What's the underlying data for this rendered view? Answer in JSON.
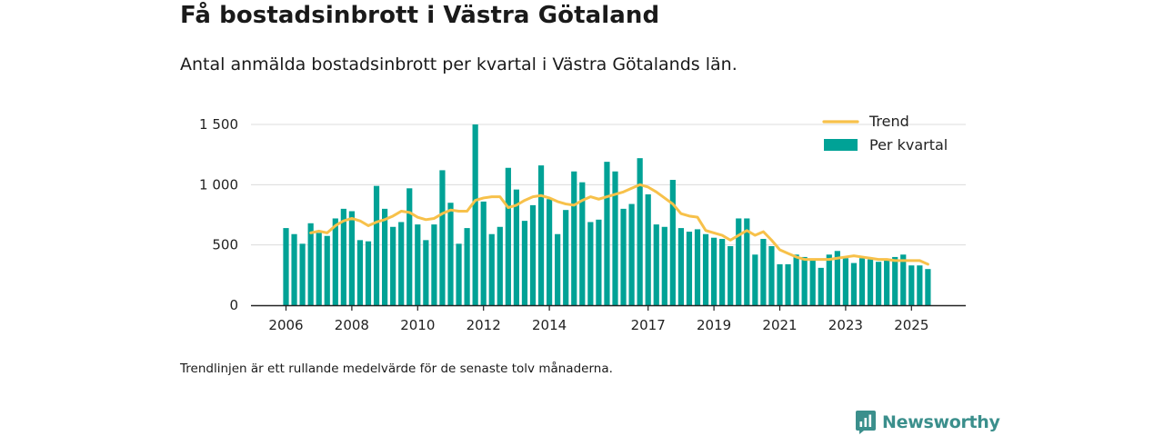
{
  "title": "Få bostadsinbrott i Västra Götaland",
  "subtitle": "Antal anmälda bostadsinbrott per kvartal i Västra Götalands län.",
  "footnote": "Trendlinjen är ett rullande medelvärde för de senaste tolv månaderna.",
  "brand": {
    "name": "Newsworthy"
  },
  "colors": {
    "bars": "#00a296",
    "trend": "#f7c14a",
    "axis": "#222222",
    "grid": "#dcdcdc"
  },
  "chart_data": {
    "type": "bar",
    "title": "Få bostadsinbrott i Västra Götaland",
    "xlabel": "",
    "ylabel": "",
    "ylim": [
      0,
      1500
    ],
    "yticks": [
      0,
      500,
      1000,
      1500
    ],
    "ytick_labels": [
      "0",
      "500",
      "1 000",
      "1 500"
    ],
    "xtick_labels": [
      {
        "label": "2006",
        "index": 0
      },
      {
        "label": "2008",
        "index": 8
      },
      {
        "label": "2010",
        "index": 16
      },
      {
        "label": "2012",
        "index": 24
      },
      {
        "label": "2014",
        "index": 32
      },
      {
        "label": "2017",
        "index": 44
      },
      {
        "label": "2019",
        "index": 52
      },
      {
        "label": "2021",
        "index": 60
      },
      {
        "label": "2023",
        "index": 68
      },
      {
        "label": "2025",
        "index": 76
      }
    ],
    "legend_position": "top-right",
    "series": [
      {
        "name": "Per kvartal",
        "type": "bar",
        "values": [
          640,
          590,
          510,
          680,
          600,
          575,
          720,
          800,
          780,
          540,
          530,
          990,
          800,
          650,
          690,
          970,
          670,
          540,
          670,
          1120,
          850,
          510,
          640,
          1500,
          860,
          590,
          650,
          1140,
          960,
          700,
          830,
          1160,
          880,
          590,
          790,
          1110,
          1020,
          690,
          710,
          1190,
          1110,
          800,
          840,
          1220,
          920,
          670,
          650,
          1040,
          640,
          610,
          630,
          590,
          560,
          550,
          490,
          720,
          720,
          420,
          550,
          490,
          340,
          340,
          420,
          400,
          380,
          310,
          420,
          450,
          390,
          350,
          390,
          380,
          360,
          380,
          400,
          420,
          330,
          330,
          300
        ]
      },
      {
        "name": "Trend",
        "type": "line",
        "values": [
          null,
          null,
          null,
          600,
          615,
          600,
          660,
          700,
          720,
          700,
          660,
          690,
          710,
          740,
          780,
          770,
          730,
          710,
          720,
          760,
          790,
          780,
          780,
          870,
          890,
          900,
          900,
          810,
          830,
          870,
          900,
          910,
          890,
          860,
          840,
          830,
          870,
          900,
          880,
          900,
          920,
          940,
          970,
          1000,
          980,
          940,
          890,
          840,
          760,
          740,
          730,
          620,
          600,
          580,
          540,
          580,
          620,
          580,
          610,
          540,
          460,
          430,
          400,
          380,
          380,
          380,
          380,
          390,
          400,
          410,
          400,
          390,
          380,
          380,
          370,
          370,
          370,
          370,
          340
        ]
      }
    ]
  }
}
